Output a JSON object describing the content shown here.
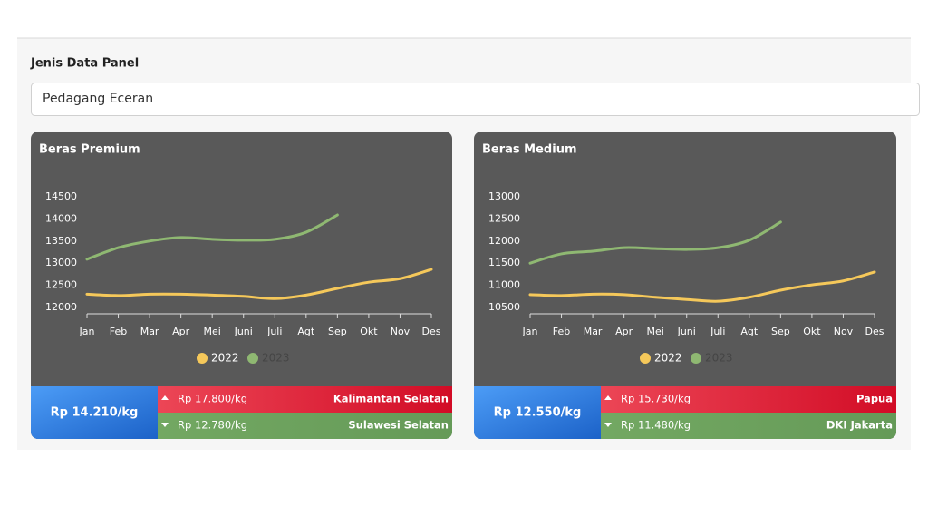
{
  "panel": {
    "label": "Jenis Data Panel",
    "selected": "Pedagang Eceran"
  },
  "chart_data": [
    {
      "type": "line",
      "title": "Beras Premium",
      "categories": [
        "Jan",
        "Feb",
        "Mar",
        "Apr",
        "Mei",
        "Juni",
        "Juli",
        "Agt",
        "Sep",
        "Okt",
        "Nov",
        "Des"
      ],
      "series": [
        {
          "name": "2022",
          "color": "#f5c85a",
          "values": [
            12300,
            12270,
            12300,
            12300,
            12280,
            12250,
            12200,
            12280,
            12430,
            12570,
            12650,
            12860
          ]
        },
        {
          "name": "2023",
          "color": "#8fb872",
          "values": [
            13090,
            13350,
            13500,
            13580,
            13540,
            13520,
            13540,
            13700,
            14090,
            null,
            null,
            null
          ]
        }
      ],
      "ylim": [
        12000,
        14500
      ],
      "yticks": [
        12000,
        12500,
        13000,
        13500,
        14000,
        14500
      ],
      "grid": false,
      "legend": "bottom"
    },
    {
      "type": "line",
      "title": "Beras Medium",
      "categories": [
        "Jan",
        "Feb",
        "Mar",
        "Apr",
        "Mei",
        "Juni",
        "Juli",
        "Agt",
        "Sep",
        "Okt",
        "Nov",
        "Des"
      ],
      "series": [
        {
          "name": "2022",
          "color": "#f5c85a",
          "values": [
            10790,
            10770,
            10800,
            10790,
            10730,
            10680,
            10640,
            10730,
            10890,
            11010,
            11100,
            11300
          ]
        },
        {
          "name": "2023",
          "color": "#8fb872",
          "values": [
            11500,
            11710,
            11770,
            11850,
            11830,
            11810,
            11850,
            12020,
            12430,
            null,
            null,
            null
          ]
        }
      ],
      "ylim": [
        10500,
        13000
      ],
      "yticks": [
        10500,
        11000,
        11500,
        12000,
        12500,
        13000
      ],
      "grid": false,
      "legend": "bottom"
    }
  ],
  "summary": [
    {
      "average": "Rp 14.210/kg",
      "highest": {
        "price": "Rp 17.800/kg",
        "region": "Kalimantan Selatan"
      },
      "lowest": {
        "price": "Rp 12.780/kg",
        "region": "Sulawesi Selatan"
      }
    },
    {
      "average": "Rp 12.550/kg",
      "highest": {
        "price": "Rp 15.730/kg",
        "region": "Papua"
      },
      "lowest": {
        "price": "Rp 11.480/kg",
        "region": "DKI Jakarta"
      }
    }
  ]
}
